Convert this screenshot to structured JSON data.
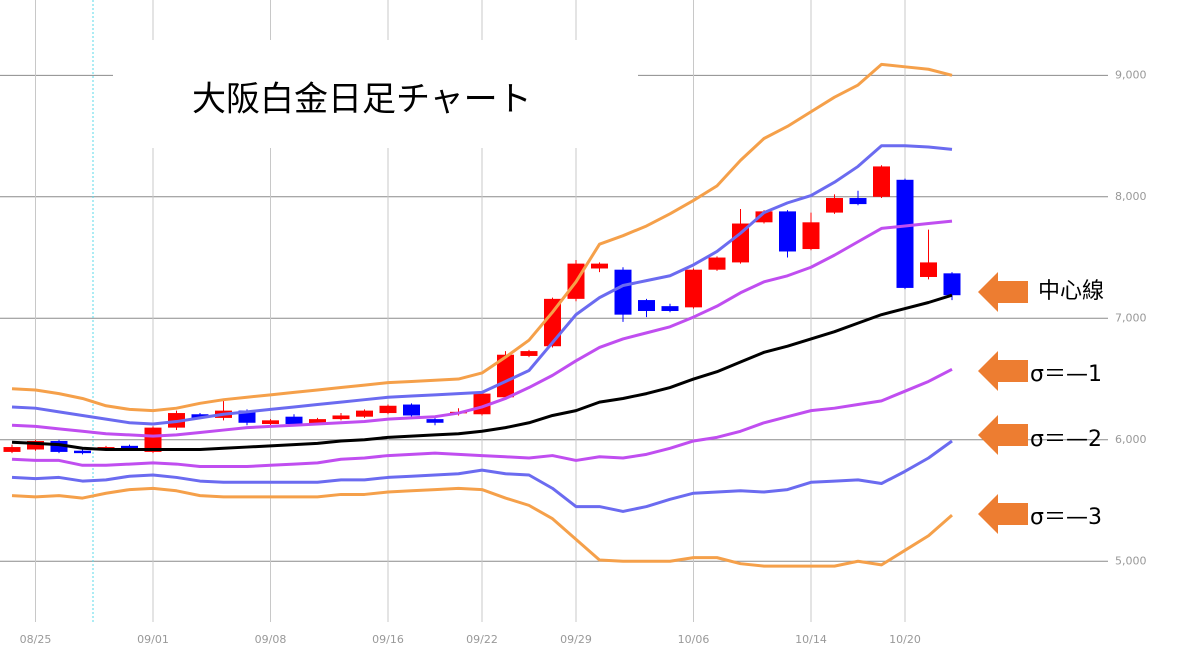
{
  "chart_data": {
    "type": "candlestick",
    "title": "大阪白金日足チャート",
    "categories": [
      null,
      "08/25",
      null,
      null,
      null,
      null,
      "09/01",
      null,
      null,
      null,
      null,
      "09/08",
      null,
      null,
      null,
      null,
      "09/16",
      null,
      null,
      null,
      "09/22",
      null,
      null,
      null,
      "09/29",
      null,
      null,
      null,
      null,
      "10/06",
      null,
      null,
      null,
      null,
      "10/14",
      null,
      null,
      null,
      "10/20",
      null,
      null
    ],
    "open": [
      5900,
      5920,
      5990,
      5910,
      5920,
      5950,
      5900,
      6100,
      6210,
      6180,
      6240,
      6130,
      6190,
      6130,
      6170,
      6190,
      6220,
      6290,
      6170,
      6220,
      6210,
      6350,
      6690,
      6770,
      7160,
      7410,
      7400,
      7150,
      7100,
      7090,
      7400,
      7460,
      7790,
      7880,
      7570,
      7870,
      7990,
      8000,
      8140,
      7340,
      7370
    ],
    "high": [
      5960,
      6000,
      6000,
      5920,
      5950,
      5960,
      6110,
      6240,
      6220,
      6320,
      6250,
      6170,
      6210,
      6180,
      6220,
      6250,
      6290,
      6300,
      6180,
      6260,
      6400,
      6730,
      6740,
      7170,
      7480,
      7460,
      7420,
      7160,
      7120,
      7410,
      7510,
      7900,
      7890,
      7890,
      7870,
      8020,
      8050,
      8260,
      8150,
      7730,
      7380
    ],
    "low": [
      5890,
      5910,
      5890,
      5880,
      5910,
      5920,
      5890,
      6080,
      6170,
      6160,
      6120,
      6120,
      6120,
      6120,
      6160,
      6180,
      6210,
      6190,
      6120,
      6200,
      6200,
      6340,
      6680,
      6760,
      7140,
      7380,
      6970,
      7010,
      7050,
      7080,
      7390,
      7450,
      7780,
      7500,
      7560,
      7860,
      7930,
      7990,
      7240,
      7320,
      7150
    ],
    "close": [
      5940,
      5990,
      5900,
      5890,
      5940,
      5930,
      6100,
      6220,
      6180,
      6240,
      6140,
      6160,
      6130,
      6170,
      6200,
      6240,
      6280,
      6200,
      6140,
      6230,
      6380,
      6700,
      6730,
      7160,
      7450,
      7450,
      7030,
      7060,
      7060,
      7400,
      7500,
      7780,
      7880,
      7550,
      7790,
      7990,
      7940,
      8250,
      7250,
      7460,
      7190
    ],
    "up_color": "#ff0000",
    "down_color": "#0000ff",
    "lines": [
      {
        "color": "#f5a04a",
        "values": [
          6420,
          6410,
          6380,
          6340,
          6280,
          6250,
          6240,
          6260,
          6300,
          6330,
          6350,
          6370,
          6390,
          6410,
          6430,
          6450,
          6470,
          6480,
          6490,
          6500,
          6550,
          6680,
          6820,
          7050,
          7300,
          7610,
          7680,
          7760,
          7860,
          7970,
          8090,
          8300,
          8480,
          8580,
          8700,
          8820,
          8920,
          9090,
          9070,
          9050,
          9000
        ]
      },
      {
        "color": "#6b6bf0",
        "values": [
          6270,
          6260,
          6230,
          6200,
          6170,
          6140,
          6130,
          6150,
          6180,
          6210,
          6230,
          6250,
          6270,
          6290,
          6310,
          6330,
          6350,
          6360,
          6370,
          6380,
          6390,
          6480,
          6570,
          6800,
          7030,
          7170,
          7270,
          7310,
          7350,
          7440,
          7550,
          7700,
          7870,
          7950,
          8010,
          8120,
          8250,
          8420,
          8420,
          8410,
          8390
        ]
      },
      {
        "color": "#c04ef0",
        "values": [
          6120,
          6110,
          6090,
          6070,
          6050,
          6040,
          6030,
          6040,
          6060,
          6080,
          6100,
          6110,
          6120,
          6130,
          6140,
          6150,
          6170,
          6180,
          6190,
          6220,
          6270,
          6340,
          6430,
          6530,
          6650,
          6760,
          6830,
          6880,
          6930,
          7010,
          7100,
          7210,
          7300,
          7350,
          7420,
          7520,
          7630,
          7740,
          7760,
          7780,
          7800
        ]
      },
      {
        "color": "#000000",
        "values": [
          5980,
          5970,
          5960,
          5930,
          5920,
          5920,
          5920,
          5920,
          5920,
          5930,
          5940,
          5950,
          5960,
          5970,
          5990,
          6000,
          6020,
          6030,
          6040,
          6050,
          6070,
          6100,
          6140,
          6200,
          6240,
          6310,
          6340,
          6380,
          6430,
          6500,
          6560,
          6640,
          6720,
          6770,
          6830,
          6890,
          6960,
          7030,
          7080,
          7130,
          7190
        ]
      },
      {
        "color": "#c04ef0",
        "values": [
          5840,
          5830,
          5830,
          5790,
          5790,
          5800,
          5810,
          5800,
          5780,
          5780,
          5780,
          5790,
          5800,
          5810,
          5840,
          5850,
          5870,
          5880,
          5890,
          5880,
          5870,
          5860,
          5850,
          5870,
          5830,
          5860,
          5850,
          5880,
          5930,
          5990,
          6020,
          6070,
          6140,
          6190,
          6240,
          6260,
          6290,
          6320,
          6400,
          6480,
          6580
        ]
      },
      {
        "color": "#6b6bf0",
        "values": [
          5690,
          5680,
          5690,
          5660,
          5670,
          5700,
          5710,
          5690,
          5660,
          5650,
          5650,
          5650,
          5650,
          5650,
          5670,
          5670,
          5690,
          5700,
          5710,
          5720,
          5750,
          5720,
          5710,
          5600,
          5450,
          5450,
          5410,
          5450,
          5510,
          5560,
          5570,
          5580,
          5570,
          5590,
          5650,
          5660,
          5670,
          5640,
          5740,
          5850,
          5990
        ]
      },
      {
        "color": "#f5a04a",
        "values": [
          5540,
          5530,
          5540,
          5520,
          5560,
          5590,
          5600,
          5580,
          5540,
          5530,
          5530,
          5530,
          5530,
          5530,
          5550,
          5550,
          5570,
          5580,
          5590,
          5600,
          5590,
          5520,
          5460,
          5350,
          5180,
          5010,
          5000,
          5000,
          5000,
          5030,
          5030,
          4980,
          4960,
          4960,
          4960,
          4960,
          5000,
          4970,
          5090,
          5210,
          5380
        ]
      }
    ],
    "annotations": [
      "中心線",
      "σ＝—1",
      "σ＝—2",
      "σ＝—3"
    ],
    "ylim": [
      4500,
      9620
    ],
    "yticks": [
      {
        "value": 5000,
        "label": "5,000"
      },
      {
        "value": 6000,
        "label": "6,000"
      },
      {
        "value": 7000,
        "label": "7,000"
      },
      {
        "value": 8000,
        "label": "8,000"
      },
      {
        "value": 9000,
        "label": "9,000"
      }
    ],
    "grid": true
  }
}
